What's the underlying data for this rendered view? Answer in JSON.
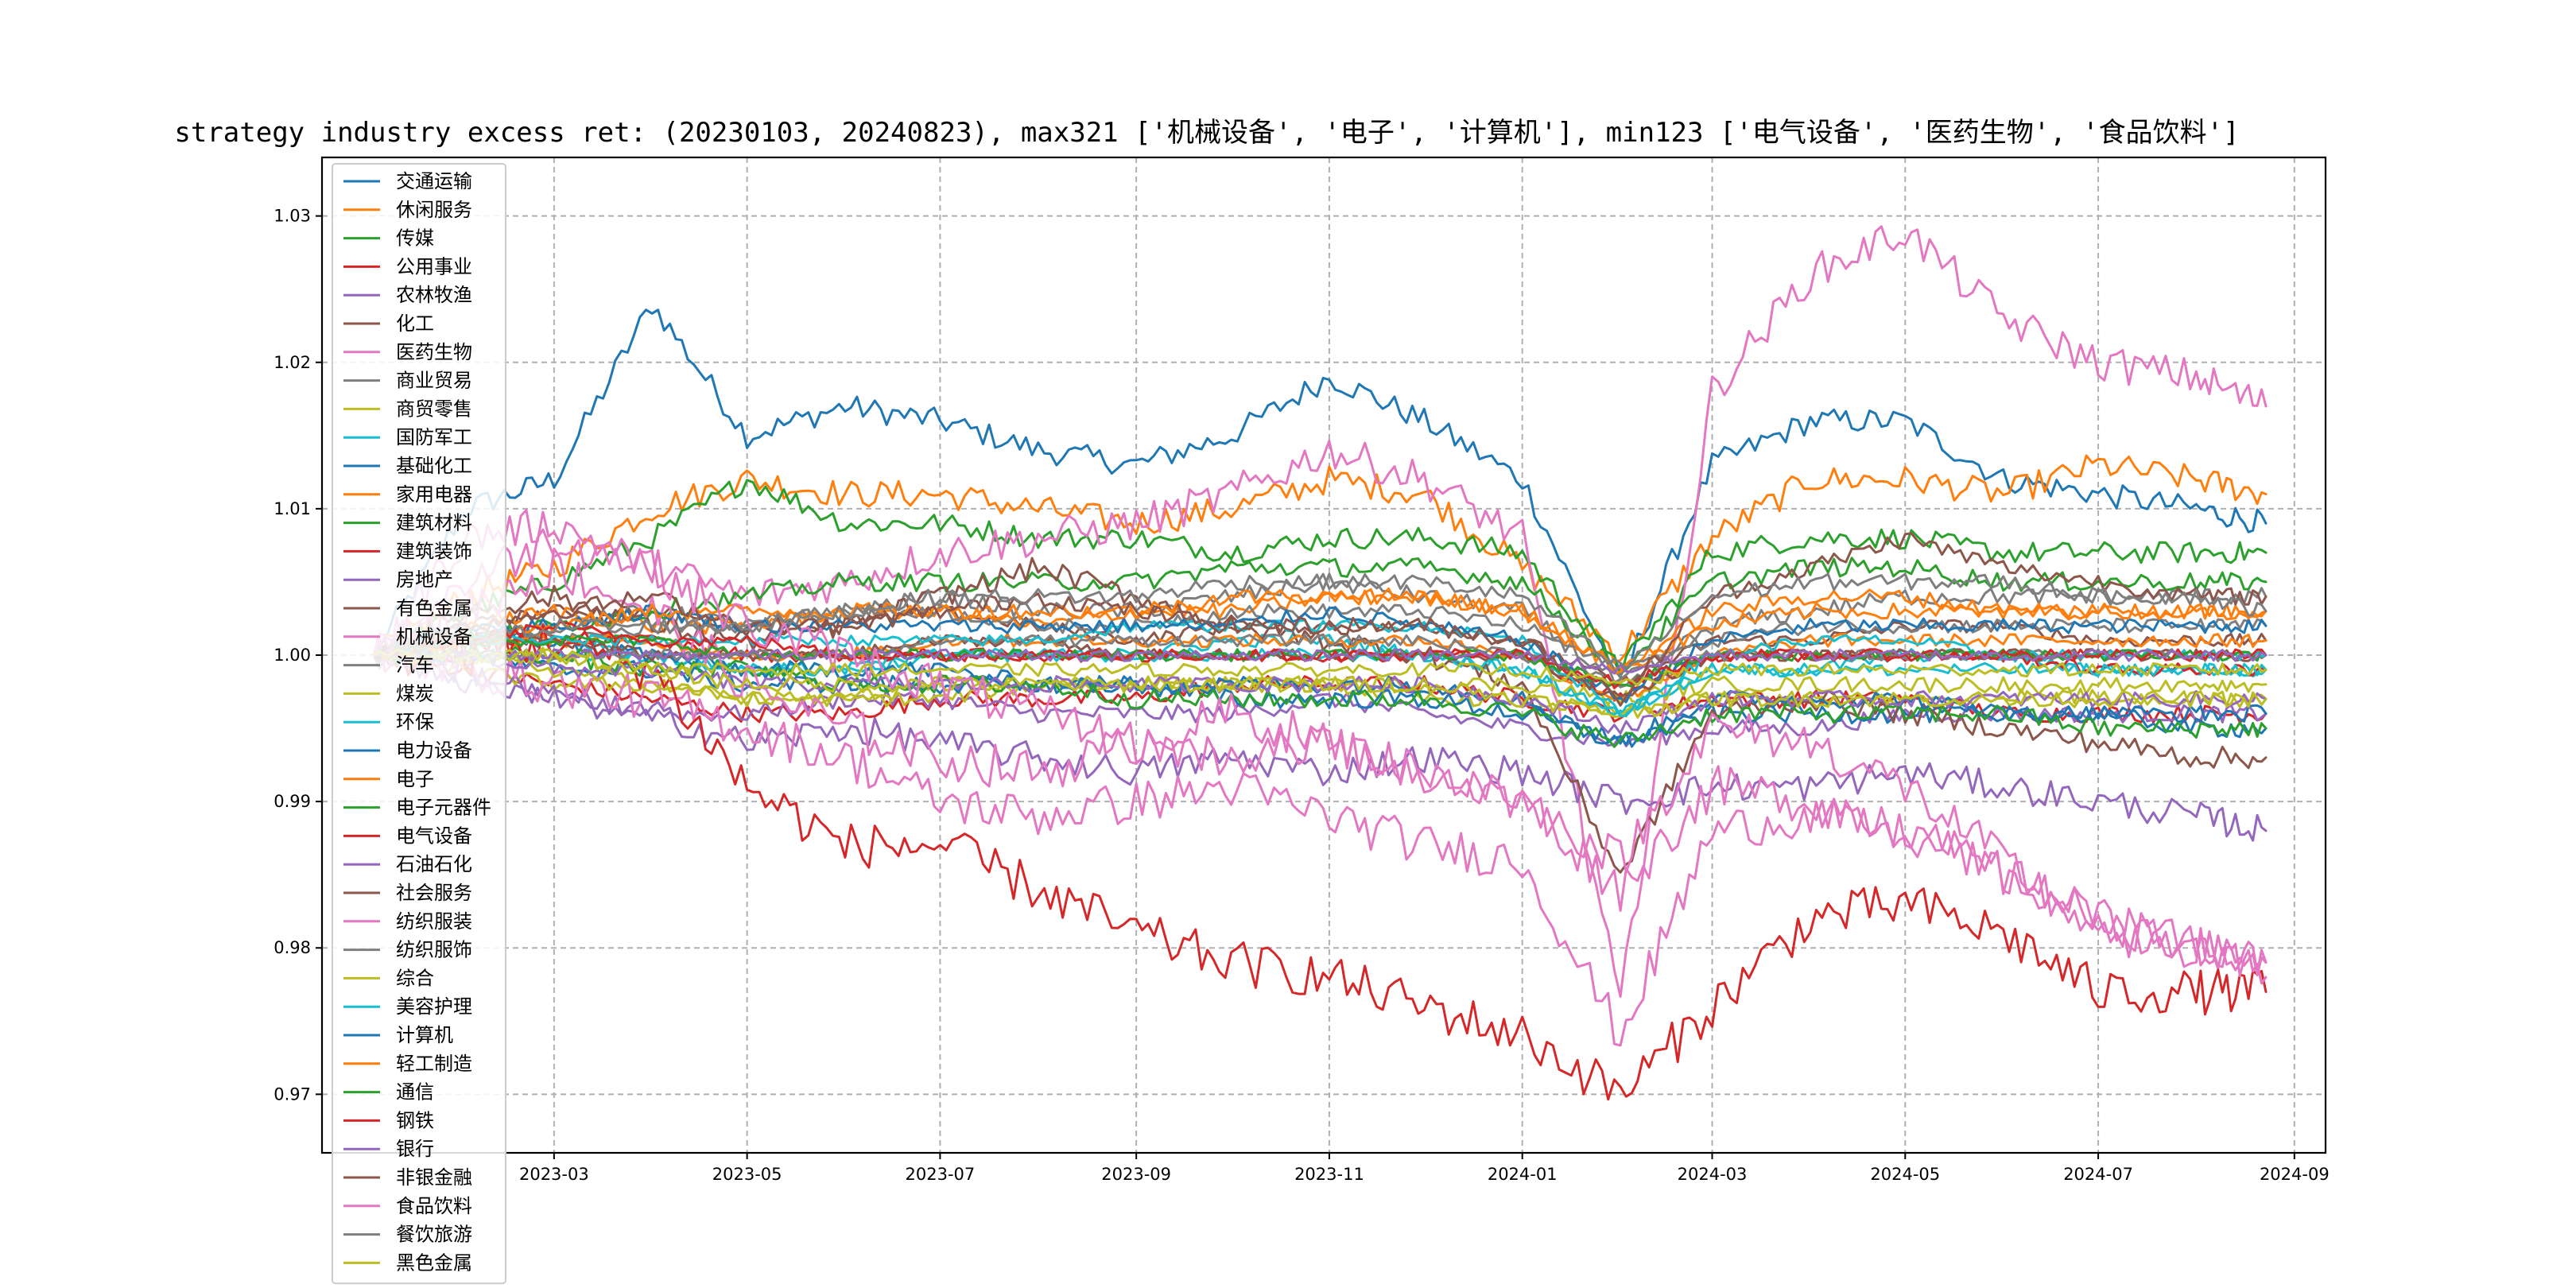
{
  "chart_data": {
    "type": "line",
    "title": "strategy industry excess ret: (20230103, 20240823), max321 ['机械设备', '电子', '计算机'], min123 ['电气设备', '医药生物', '食品饮料']",
    "xlabel": "",
    "ylabel": "",
    "x_range": [
      "2023-01-03",
      "2024-08-23"
    ],
    "x_ticks": [
      "2023-03",
      "2023-05",
      "2023-07",
      "2023-09",
      "2023-11",
      "2024-01",
      "2024-03",
      "2024-05",
      "2024-07",
      "2024-09"
    ],
    "ylim": [
      0.966,
      1.034
    ],
    "y_ticks": [
      0.97,
      0.98,
      0.99,
      1.0,
      1.01,
      1.02,
      1.03
    ],
    "y_tick_labels": [
      "0.97",
      "0.98",
      "0.99",
      "1.00",
      "1.01",
      "1.02",
      "1.03"
    ],
    "grid": true,
    "legend_position": "left, spanning full height (overflows below axes)",
    "anchor_months": [
      "2023-01",
      "2023-02",
      "2023-03",
      "2023-04",
      "2023-05",
      "2023-06",
      "2023-07",
      "2023-08",
      "2023-09",
      "2023-10",
      "2023-11",
      "2023-12",
      "2024-01",
      "2024-02",
      "2024-03",
      "2024-04",
      "2024-05",
      "2024-06",
      "2024-07",
      "2024-08",
      "2024-08-23"
    ],
    "series": [
      {
        "name": "交通运输",
        "color": "#1f77b4",
        "values": [
          1.0,
          1.01,
          1.012,
          1.024,
          1.015,
          1.017,
          1.016,
          1.014,
          1.013,
          1.015,
          1.019,
          1.016,
          1.012,
          0.998,
          1.013,
          1.016,
          1.016,
          1.012,
          1.011,
          1.01,
          1.009
        ]
      },
      {
        "name": "休闲服务",
        "color": "#ff7f0e",
        "values": [
          1.0,
          1.004,
          1.006,
          1.01,
          1.012,
          1.011,
          1.011,
          1.01,
          1.009,
          1.01,
          1.012,
          1.011,
          1.006,
          1.0,
          1.008,
          1.012,
          1.012,
          1.011,
          1.013,
          1.012,
          1.011
        ]
      },
      {
        "name": "传媒",
        "color": "#2ca02c",
        "values": [
          1.0,
          1.003,
          1.005,
          1.008,
          1.012,
          1.009,
          1.009,
          1.008,
          1.008,
          1.007,
          1.008,
          1.008,
          1.007,
          0.999,
          1.007,
          1.008,
          1.008,
          1.007,
          1.007,
          1.007,
          1.007
        ]
      },
      {
        "name": "公用事业",
        "color": "#d62728",
        "values": [
          1.0,
          0.999,
          0.998,
          0.997,
          0.996,
          0.996,
          0.997,
          0.997,
          0.997,
          0.998,
          0.998,
          0.998,
          0.997,
          0.996,
          0.997,
          0.997,
          0.997,
          0.996,
          0.996,
          0.996,
          0.996
        ]
      },
      {
        "name": "农林牧渔",
        "color": "#9467bd",
        "values": [
          1.0,
          0.998,
          0.997,
          0.996,
          0.996,
          0.997,
          0.997,
          0.996,
          0.996,
          0.996,
          0.997,
          0.996,
          0.995,
          0.994,
          0.995,
          0.995,
          0.996,
          0.996,
          0.996,
          0.996,
          0.996
        ]
      },
      {
        "name": "化工",
        "color": "#8c564b",
        "values": [
          1.0,
          1.002,
          1.003,
          1.003,
          1.002,
          1.002,
          1.003,
          1.002,
          1.001,
          1.002,
          1.002,
          1.002,
          1.001,
          0.998,
          1.001,
          1.001,
          1.002,
          1.002,
          1.001,
          1.001,
          1.001
        ]
      },
      {
        "name": "医药生物",
        "color": "#e377c2",
        "values": [
          1.0,
          1.008,
          1.009,
          1.006,
          1.004,
          1.005,
          1.007,
          1.008,
          1.009,
          1.011,
          1.014,
          1.012,
          1.008,
          0.976,
          1.018,
          1.026,
          1.029,
          1.023,
          1.02,
          1.019,
          1.017
        ]
      },
      {
        "name": "商业贸易",
        "color": "#7f7f7f",
        "values": [
          1.0,
          1.001,
          1.002,
          1.003,
          1.002,
          1.003,
          1.004,
          1.003,
          1.003,
          1.004,
          1.005,
          1.004,
          1.003,
          0.998,
          1.002,
          1.003,
          1.004,
          1.004,
          1.004,
          1.004,
          1.004
        ]
      },
      {
        "name": "商贸零售",
        "color": "#bcbd22",
        "values": [
          1.0,
          0.999,
          0.998,
          0.998,
          0.997,
          0.997,
          0.997,
          0.998,
          0.998,
          0.998,
          0.998,
          0.997,
          0.997,
          0.996,
          0.997,
          0.997,
          0.997,
          0.997,
          0.998,
          0.998,
          0.998
        ]
      },
      {
        "name": "国防军工",
        "color": "#17becf",
        "values": [
          1.0,
          1.001,
          1.001,
          1.0,
          0.999,
          0.999,
          1.0,
          1.0,
          1.0,
          1.001,
          1.001,
          1.0,
          0.999,
          0.996,
          0.999,
          0.999,
          1.0,
          1.0,
          0.999,
          0.999,
          0.999
        ]
      },
      {
        "name": "基础化工",
        "color": "#1f77b4",
        "values": [
          1.0,
          1.0,
          0.999,
          0.999,
          0.998,
          0.998,
          0.998,
          0.998,
          0.998,
          0.997,
          0.997,
          0.997,
          0.996,
          0.994,
          0.996,
          0.996,
          0.996,
          0.996,
          0.996,
          0.995,
          0.995
        ]
      },
      {
        "name": "家用电器",
        "color": "#ff7f0e",
        "values": [
          1.0,
          1.002,
          1.003,
          1.002,
          1.002,
          1.003,
          1.003,
          1.002,
          1.003,
          1.003,
          1.004,
          1.004,
          1.003,
          0.999,
          1.003,
          1.004,
          1.004,
          1.003,
          1.003,
          1.003,
          1.003
        ]
      },
      {
        "name": "建筑材料",
        "color": "#2ca02c",
        "values": [
          1.0,
          1.001,
          1.002,
          1.003,
          1.004,
          1.005,
          1.005,
          1.005,
          1.005,
          1.006,
          1.006,
          1.006,
          1.005,
          0.999,
          1.005,
          1.006,
          1.006,
          1.005,
          1.005,
          1.005,
          1.005
        ]
      },
      {
        "name": "建筑装饰",
        "color": "#d62728",
        "values": [
          1.0,
          1.001,
          1.001,
          1.001,
          1.0,
          1.0,
          1.0,
          1.0,
          1.0,
          1.0,
          1.0,
          1.0,
          1.0,
          0.997,
          1.0,
          1.0,
          1.0,
          1.0,
          0.999,
          0.999,
          0.999
        ]
      },
      {
        "name": "房地产",
        "color": "#9467bd",
        "values": [
          1.0,
          0.999,
          0.997,
          0.996,
          0.994,
          0.995,
          0.994,
          0.993,
          0.992,
          0.993,
          0.992,
          0.993,
          0.992,
          0.99,
          0.991,
          0.991,
          0.992,
          0.991,
          0.99,
          0.989,
          0.988
        ]
      },
      {
        "name": "有色金属",
        "color": "#8c564b",
        "values": [
          1.0,
          1.003,
          1.004,
          1.002,
          1.001,
          1.002,
          1.004,
          1.006,
          1.004,
          1.002,
          1.001,
          1.0,
          0.998,
          0.985,
          0.996,
          0.997,
          0.996,
          0.995,
          0.994,
          0.993,
          0.993
        ]
      },
      {
        "name": "机械设备",
        "color": "#e377c2",
        "values": [
          1.0,
          0.999,
          0.998,
          0.997,
          0.995,
          0.993,
          0.99,
          0.989,
          0.99,
          0.991,
          0.989,
          0.987,
          0.986,
          0.974,
          0.988,
          0.989,
          0.988,
          0.985,
          0.982,
          0.98,
          0.979
        ]
      },
      {
        "name": "汽车",
        "color": "#7f7f7f",
        "values": [
          1.0,
          1.001,
          1.001,
          1.002,
          1.002,
          1.003,
          1.003,
          1.002,
          1.002,
          1.003,
          1.003,
          1.003,
          1.002,
          0.999,
          1.001,
          1.002,
          1.002,
          1.002,
          1.002,
          1.002,
          1.002
        ]
      },
      {
        "name": "煤炭",
        "color": "#bcbd22",
        "values": [
          1.0,
          1.0,
          0.999,
          0.998,
          0.997,
          0.997,
          0.998,
          0.998,
          0.998,
          0.998,
          0.998,
          0.998,
          0.998,
          0.997,
          0.998,
          0.998,
          0.998,
          0.998,
          0.997,
          0.997,
          0.997
        ]
      },
      {
        "name": "环保",
        "color": "#17becf",
        "values": [
          1.0,
          1.0,
          1.0,
          1.0,
          0.999,
          0.999,
          1.0,
          1.0,
          1.0,
          1.0,
          1.0,
          1.0,
          0.999,
          0.996,
          0.999,
          0.999,
          0.999,
          0.999,
          0.999,
          0.999,
          0.999
        ]
      },
      {
        "name": "电力设备",
        "color": "#1f77b4",
        "values": [
          1.0,
          1.001,
          1.001,
          1.0,
          0.999,
          0.999,
          0.999,
          0.998,
          0.998,
          0.998,
          0.998,
          0.998,
          0.997,
          0.994,
          0.997,
          0.997,
          0.997,
          0.996,
          0.996,
          0.996,
          0.996
        ]
      },
      {
        "name": "电子",
        "color": "#ff7f0e",
        "values": [
          1.0,
          1.001,
          1.001,
          1.001,
          1.0,
          1.0,
          1.001,
          1.001,
          1.001,
          1.001,
          1.001,
          1.001,
          1.0,
          0.997,
          1.0,
          1.001,
          1.001,
          1.001,
          1.001,
          1.001,
          1.001
        ]
      },
      {
        "name": "电子元器件",
        "color": "#2ca02c",
        "values": [
          1.0,
          1.0,
          1.0,
          0.999,
          0.999,
          0.998,
          0.998,
          0.998,
          0.997,
          0.997,
          0.997,
          0.997,
          0.996,
          0.994,
          0.996,
          0.996,
          0.996,
          0.996,
          0.995,
          0.995,
          0.995
        ]
      },
      {
        "name": "电气设备",
        "color": "#d62728",
        "values": [
          1.0,
          1.0,
          1.001,
          0.999,
          0.991,
          0.987,
          0.987,
          0.984,
          0.981,
          0.979,
          0.978,
          0.976,
          0.974,
          0.97,
          0.976,
          0.982,
          0.983,
          0.981,
          0.977,
          0.977,
          0.977
        ]
      },
      {
        "name": "石油石化",
        "color": "#9467bd",
        "values": [
          1.0,
          1.0,
          0.999,
          0.999,
          0.998,
          0.998,
          0.998,
          0.998,
          0.998,
          0.998,
          0.998,
          0.998,
          0.997,
          0.995,
          0.997,
          0.997,
          0.997,
          0.997,
          0.997,
          0.997,
          0.997
        ]
      },
      {
        "name": "社会服务",
        "color": "#8c564b",
        "values": [
          1.0,
          1.001,
          1.001,
          1.0,
          1.0,
          1.0,
          1.001,
          1.001,
          1.0,
          1.0,
          1.0,
          1.0,
          1.0,
          0.997,
          1.0,
          1.0,
          1.0,
          1.0,
          1.0,
          1.0,
          1.0
        ]
      },
      {
        "name": "纺织服装",
        "color": "#e377c2",
        "values": [
          1.0,
          1.003,
          1.006,
          1.003,
          0.998,
          0.995,
          0.993,
          0.992,
          0.994,
          0.996,
          0.994,
          0.992,
          0.99,
          0.984,
          0.991,
          0.99,
          0.988,
          0.985,
          0.982,
          0.98,
          0.978
        ]
      },
      {
        "name": "纺织服饰",
        "color": "#7f7f7f",
        "values": [
          1.0,
          1.0,
          1.0,
          1.0,
          1.0,
          1.0,
          1.001,
          1.001,
          1.001,
          1.001,
          1.001,
          1.001,
          1.0,
          0.998,
          1.0,
          1.0,
          1.0,
          1.0,
          1.0,
          1.0,
          1.0
        ]
      },
      {
        "name": "综合",
        "color": "#bcbd22",
        "values": [
          1.0,
          1.0,
          1.0,
          0.999,
          0.998,
          0.998,
          0.998,
          0.998,
          0.998,
          0.998,
          0.998,
          0.998,
          0.997,
          0.996,
          0.997,
          0.997,
          0.997,
          0.997,
          0.997,
          0.997,
          0.997
        ]
      },
      {
        "name": "美容护理",
        "color": "#17becf",
        "values": [
          1.0,
          1.001,
          1.001,
          1.001,
          1.001,
          1.001,
          1.001,
          1.001,
          1.002,
          1.002,
          1.002,
          1.002,
          1.001,
          0.996,
          1.0,
          1.001,
          1.001,
          1.0,
          1.0,
          1.0,
          1.0
        ]
      },
      {
        "name": "计算机",
        "color": "#1f77b4",
        "values": [
          1.0,
          1.002,
          1.002,
          1.003,
          1.002,
          1.002,
          1.002,
          1.002,
          1.002,
          1.002,
          1.003,
          1.002,
          1.001,
          0.997,
          1.001,
          1.002,
          1.002,
          1.002,
          1.002,
          1.002,
          1.002
        ]
      },
      {
        "name": "轻工制造",
        "color": "#ff7f0e",
        "values": [
          1.0,
          1.001,
          1.002,
          1.003,
          1.003,
          1.003,
          1.003,
          1.003,
          1.003,
          1.004,
          1.004,
          1.004,
          1.003,
          0.999,
          1.002,
          1.003,
          1.003,
          1.003,
          1.003,
          1.003,
          1.003
        ]
      },
      {
        "name": "通信",
        "color": "#2ca02c",
        "values": [
          1.0,
          1.001,
          1.001,
          1.001,
          1.0,
          1.0,
          1.0,
          1.0,
          1.0,
          1.0,
          1.0,
          1.0,
          1.0,
          0.998,
          1.0,
          1.0,
          1.0,
          1.0,
          1.0,
          1.0,
          1.0
        ]
      },
      {
        "name": "钢铁",
        "color": "#d62728",
        "values": [
          1.0,
          1.001,
          1.002,
          1.001,
          1.001,
          1.0,
          1.0,
          1.0,
          1.0,
          1.0,
          1.0,
          1.0,
          1.0,
          0.998,
          1.0,
          1.0,
          1.0,
          1.0,
          1.0,
          1.0,
          1.0
        ]
      },
      {
        "name": "银行",
        "color": "#9467bd",
        "values": [
          1.0,
          1.0,
          1.0,
          1.0,
          1.0,
          1.0,
          1.0,
          1.0,
          1.0,
          1.0,
          1.0,
          1.0,
          1.0,
          0.999,
          1.0,
          1.0,
          1.0,
          1.0,
          1.0,
          1.0,
          1.0
        ]
      },
      {
        "name": "非银金融",
        "color": "#8c564b",
        "values": [
          1.0,
          1.002,
          1.003,
          1.004,
          1.002,
          1.002,
          1.003,
          1.004,
          1.003,
          1.002,
          1.002,
          1.002,
          1.001,
          0.997,
          1.004,
          1.006,
          1.008,
          1.006,
          1.005,
          1.004,
          1.004
        ]
      },
      {
        "name": "食品饮料",
        "color": "#e377c2",
        "values": [
          1.0,
          1.005,
          1.008,
          1.006,
          1.002,
          1.0,
          0.998,
          0.996,
          0.994,
          0.993,
          0.994,
          0.992,
          0.99,
          0.986,
          0.995,
          0.994,
          0.991,
          0.986,
          0.981,
          0.98,
          0.979
        ]
      },
      {
        "name": "餐饮旅游",
        "color": "#7f7f7f",
        "values": [
          1.0,
          1.001,
          1.002,
          1.002,
          1.002,
          1.003,
          1.004,
          1.004,
          1.004,
          1.005,
          1.005,
          1.005,
          1.004,
          0.999,
          1.004,
          1.005,
          1.005,
          1.005,
          1.004,
          1.004,
          1.003
        ]
      },
      {
        "name": "黑色金属",
        "color": "#bcbd22",
        "values": [
          1.0,
          1.0,
          1.0,
          0.999,
          0.999,
          0.999,
          0.999,
          0.999,
          0.999,
          0.999,
          0.999,
          0.999,
          0.999,
          0.998,
          0.999,
          0.999,
          0.999,
          0.999,
          0.999,
          0.999,
          0.999
        ]
      }
    ]
  }
}
